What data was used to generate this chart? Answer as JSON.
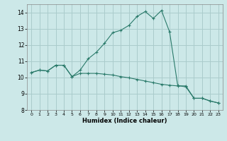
{
  "xlabel": "Humidex (Indice chaleur)",
  "xlim": [
    -0.5,
    23.5
  ],
  "ylim": [
    8.0,
    14.5
  ],
  "yticks": [
    8,
    9,
    10,
    11,
    12,
    13,
    14
  ],
  "xticks": [
    0,
    1,
    2,
    3,
    4,
    5,
    6,
    7,
    8,
    9,
    10,
    11,
    12,
    13,
    14,
    15,
    16,
    17,
    18,
    19,
    20,
    21,
    22,
    23
  ],
  "bg_color": "#cce8e8",
  "grid_color": "#aacccc",
  "line_color": "#2a7a6a",
  "line1_x": [
    0,
    1,
    2,
    3,
    4,
    5,
    6,
    7,
    8,
    9,
    10,
    11,
    12,
    13,
    14,
    15,
    16,
    17,
    18,
    19,
    20,
    21,
    22,
    23
  ],
  "line1_y": [
    10.3,
    10.45,
    10.4,
    10.75,
    10.75,
    10.05,
    10.25,
    10.25,
    10.25,
    10.2,
    10.15,
    10.05,
    9.98,
    9.88,
    9.78,
    9.68,
    9.58,
    9.52,
    9.48,
    9.48,
    8.72,
    8.72,
    8.55,
    8.43
  ],
  "line2_x": [
    0,
    1,
    2,
    3,
    4,
    5,
    6,
    7,
    8,
    9,
    10,
    11,
    12,
    13,
    14,
    15,
    16,
    17,
    18,
    19,
    20,
    21,
    22,
    23
  ],
  "line2_y": [
    10.3,
    10.45,
    10.4,
    10.75,
    10.75,
    10.05,
    10.45,
    11.15,
    11.55,
    12.1,
    12.75,
    12.9,
    13.2,
    13.75,
    14.05,
    13.63,
    14.12,
    12.8,
    9.5,
    9.42,
    8.72,
    8.72,
    8.55,
    8.43
  ]
}
